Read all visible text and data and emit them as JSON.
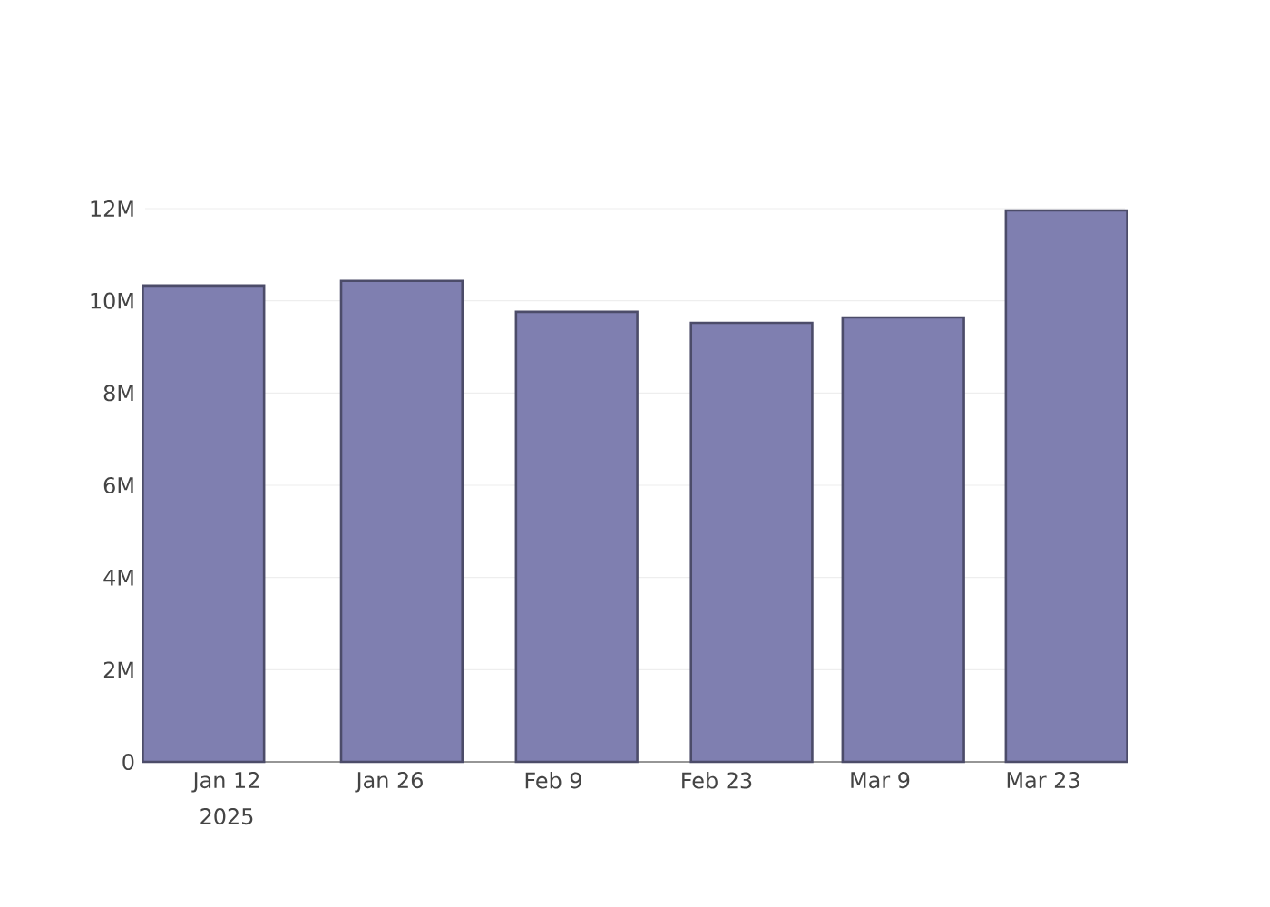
{
  "chart_data": {
    "type": "bar",
    "x": [
      "2025-01-10",
      "2025-01-27",
      "2025-02-11",
      "2025-02-26",
      "2025-03-11",
      "2025-03-25"
    ],
    "values": [
      10330000,
      10430000,
      9760000,
      9520000,
      9640000,
      11960000
    ],
    "color": "#7f7fb0",
    "xlim": [
      "2025-01-05",
      "2025-03-30"
    ],
    "xticks": [
      {
        "value": "2025-01-12",
        "label": "Jan 12"
      },
      {
        "value": "2025-01-26",
        "label": "Jan 26"
      },
      {
        "value": "2025-02-09",
        "label": "Feb 9"
      },
      {
        "value": "2025-02-23",
        "label": "Feb 23"
      },
      {
        "value": "2025-03-09",
        "label": "Mar 9"
      },
      {
        "value": "2025-03-23",
        "label": "Mar 23"
      }
    ],
    "ylim": [
      0,
      12000000
    ],
    "yticks": [
      0,
      {
        "value": 2000000,
        "label": "2M"
      },
      {
        "value": 4000000,
        "label": "4M"
      },
      {
        "value": 6000000,
        "label": "6M"
      },
      {
        "value": 8000000,
        "label": "8M"
      },
      {
        "value": 10000000,
        "label": "10M"
      },
      {
        "value": 12000000,
        "label": "12M"
      }
    ],
    "grid": "y",
    "annotations": [
      "2025"
    ]
  }
}
